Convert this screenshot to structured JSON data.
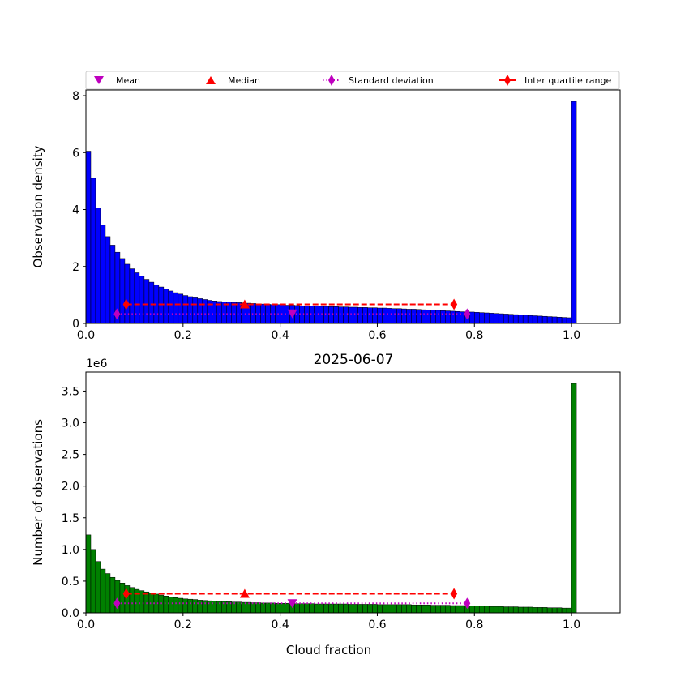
{
  "figure_title": "2025-06-07",
  "legend": {
    "placement": "above top panel",
    "entries": [
      {
        "label": "Mean",
        "marker": "triangle-down",
        "color": "#bf00bf",
        "line": "none"
      },
      {
        "label": "Median",
        "marker": "triangle-up",
        "color": "#ff0000",
        "line": "none"
      },
      {
        "label": "Standard deviation",
        "marker": "thin-diamond",
        "color": "#bf00bf",
        "line": "dotted"
      },
      {
        "label": "Inter quartile range",
        "marker": "thin-diamond",
        "color": "#ff0000",
        "line": "dashed"
      }
    ]
  },
  "chart_data": [
    {
      "type": "bar",
      "xlabel": "",
      "ylabel": "Observation density",
      "xlim": [
        0,
        1.1
      ],
      "ylim": [
        0,
        8.2
      ],
      "xticks": [
        "0.0",
        "0.2",
        "0.4",
        "0.6",
        "0.8",
        "1.0"
      ],
      "yticks": [
        "0",
        "2",
        "4",
        "6",
        "8"
      ],
      "bar_color": "#0000ff",
      "bin_width": 0.01,
      "bin_start": 0.0,
      "values": [
        6.05,
        5.1,
        4.05,
        3.45,
        3.05,
        2.75,
        2.5,
        2.28,
        2.08,
        1.92,
        1.78,
        1.66,
        1.55,
        1.45,
        1.36,
        1.28,
        1.21,
        1.14,
        1.08,
        1.03,
        0.98,
        0.94,
        0.9,
        0.87,
        0.84,
        0.81,
        0.79,
        0.77,
        0.76,
        0.75,
        0.74,
        0.73,
        0.72,
        0.71,
        0.7,
        0.69,
        0.68,
        0.67,
        0.66,
        0.66,
        0.65,
        0.64,
        0.64,
        0.63,
        0.62,
        0.62,
        0.61,
        0.61,
        0.6,
        0.6,
        0.59,
        0.59,
        0.58,
        0.58,
        0.57,
        0.57,
        0.56,
        0.56,
        0.55,
        0.55,
        0.54,
        0.54,
        0.53,
        0.52,
        0.52,
        0.51,
        0.5,
        0.5,
        0.49,
        0.48,
        0.47,
        0.47,
        0.46,
        0.45,
        0.44,
        0.43,
        0.42,
        0.41,
        0.4,
        0.4,
        0.39,
        0.38,
        0.37,
        0.36,
        0.35,
        0.34,
        0.33,
        0.32,
        0.31,
        0.3,
        0.29,
        0.28,
        0.27,
        0.26,
        0.25,
        0.24,
        0.23,
        0.22,
        0.21,
        0.2,
        7.8
      ],
      "stats": {
        "mean": {
          "x": 0.425,
          "y": 0.35
        },
        "median": {
          "x": 0.327,
          "y": 0.67
        },
        "std_range": {
          "x": [
            0.064,
            0.785
          ],
          "y": 0.33
        },
        "iqr": {
          "x": [
            0.083,
            0.758
          ],
          "y": 0.67
        }
      }
    },
    {
      "type": "bar",
      "title": "2025-06-07",
      "xlabel": "Cloud fraction",
      "ylabel": "Number of observations",
      "y_offset_text": "1e6",
      "xlim": [
        0,
        1.1
      ],
      "ylim": [
        0,
        3.8
      ],
      "xticks": [
        "0.0",
        "0.2",
        "0.4",
        "0.6",
        "0.8",
        "1.0"
      ],
      "yticks": [
        "0.0",
        "0.5",
        "1.0",
        "1.5",
        "2.0",
        "2.5",
        "3.0",
        "3.5"
      ],
      "bar_color": "#008000",
      "bin_width": 0.01,
      "bin_start": 0.0,
      "values": [
        1.23,
        1.0,
        0.81,
        0.69,
        0.62,
        0.56,
        0.51,
        0.47,
        0.43,
        0.4,
        0.37,
        0.35,
        0.33,
        0.31,
        0.295,
        0.28,
        0.265,
        0.25,
        0.24,
        0.23,
        0.22,
        0.215,
        0.21,
        0.2,
        0.195,
        0.19,
        0.185,
        0.18,
        0.18,
        0.175,
        0.17,
        0.17,
        0.165,
        0.165,
        0.16,
        0.16,
        0.155,
        0.155,
        0.155,
        0.15,
        0.15,
        0.15,
        0.15,
        0.145,
        0.145,
        0.145,
        0.145,
        0.14,
        0.14,
        0.14,
        0.14,
        0.14,
        0.14,
        0.14,
        0.135,
        0.135,
        0.135,
        0.135,
        0.135,
        0.135,
        0.13,
        0.13,
        0.13,
        0.13,
        0.13,
        0.13,
        0.13,
        0.125,
        0.125,
        0.125,
        0.125,
        0.12,
        0.12,
        0.12,
        0.12,
        0.115,
        0.115,
        0.115,
        0.11,
        0.11,
        0.11,
        0.105,
        0.105,
        0.1,
        0.1,
        0.1,
        0.095,
        0.095,
        0.095,
        0.09,
        0.09,
        0.09,
        0.085,
        0.085,
        0.085,
        0.08,
        0.08,
        0.08,
        0.075,
        0.075,
        3.62
      ],
      "stats": {
        "mean": {
          "x": 0.425,
          "y": 0.15
        },
        "median": {
          "x": 0.327,
          "y": 0.3
        },
        "std_range": {
          "x": [
            0.064,
            0.785
          ],
          "y": 0.15
        },
        "iqr": {
          "x": [
            0.083,
            0.758
          ],
          "y": 0.3
        }
      }
    }
  ]
}
